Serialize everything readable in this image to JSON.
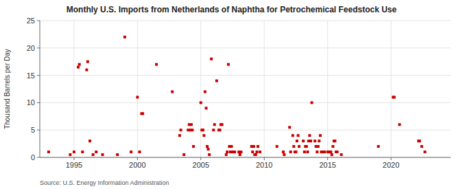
{
  "chart_data": {
    "type": "scatter",
    "title": "Monthly U.S. Imports from Netherlands of Naphtha for Petrochemical Feedstock Use",
    "y_label": "Thousand Barrels per Day",
    "annotations": [
      "Source: U.S. Energy Information Administration"
    ],
    "color": "#cc0000",
    "marker": "square",
    "grid": true,
    "xlim": [
      1992.3,
      2024.7
    ],
    "xticks": [
      1995,
      2000,
      2005,
      2010,
      2015,
      2020
    ],
    "ylim": [
      0,
      25
    ],
    "yticks": [
      0,
      5,
      10,
      15,
      20,
      25
    ],
    "x": [
      1993.0,
      1994.7,
      1995.0,
      1995.33,
      1995.42,
      1995.67,
      1996.0,
      1996.08,
      1996.25,
      1996.5,
      1996.75,
      1997.25,
      1998.42,
      1999.0,
      1999.5,
      2000.0,
      2000.17,
      2000.33,
      2000.42,
      2001.5,
      2002.75,
      2003.33,
      2003.42,
      2003.67,
      2004.0,
      2004.08,
      2004.17,
      2004.25,
      2004.33,
      2004.42,
      2005.0,
      2005.08,
      2005.17,
      2005.25,
      2005.33,
      2005.42,
      2005.5,
      2005.58,
      2005.67,
      2005.83,
      2006.0,
      2006.08,
      2006.25,
      2006.42,
      2006.5,
      2006.58,
      2006.67,
      2007.0,
      2007.08,
      2007.17,
      2007.25,
      2007.33,
      2007.42,
      2007.5,
      2007.58,
      2007.67,
      2008.0,
      2008.08,
      2008.17,
      2009.0,
      2009.08,
      2009.17,
      2009.25,
      2009.33,
      2009.42,
      2009.5,
      2009.67,
      2011.0,
      2011.5,
      2011.58,
      2012.0,
      2012.08,
      2012.25,
      2012.33,
      2012.42,
      2012.5,
      2012.58,
      2012.67,
      2012.75,
      2013.08,
      2013.17,
      2013.25,
      2013.33,
      2013.42,
      2013.5,
      2013.58,
      2013.67,
      2013.75,
      2014.0,
      2014.08,
      2014.17,
      2014.25,
      2014.33,
      2014.42,
      2014.5,
      2014.58,
      2014.67,
      2014.75,
      2015.0,
      2015.08,
      2015.17,
      2015.25,
      2015.33,
      2015.42,
      2015.5,
      2015.58,
      2015.67,
      2015.75,
      2016.08,
      2019.0,
      2020.17,
      2020.25,
      2020.67,
      2022.17,
      2022.25,
      2022.42,
      2022.67
    ],
    "values": [
      1.0,
      0.5,
      1.0,
      16.5,
      17.0,
      1.0,
      16.0,
      17.5,
      3.0,
      0.5,
      1.0,
      0.5,
      0.5,
      22.0,
      1.0,
      11.0,
      1.0,
      8.0,
      8.0,
      17.0,
      12.0,
      4.0,
      5.0,
      0.5,
      5.0,
      6.0,
      5.0,
      6.0,
      5.0,
      2.0,
      10.0,
      5.0,
      5.0,
      4.0,
      12.0,
      9.0,
      2.0,
      1.5,
      0.5,
      18.0,
      5.0,
      6.0,
      14.0,
      5.0,
      5.0,
      6.0,
      6.0,
      0.5,
      1.0,
      17.0,
      2.0,
      1.0,
      2.0,
      1.0,
      1.0,
      1.0,
      1.0,
      0.5,
      1.0,
      2.0,
      1.0,
      2.0,
      0.5,
      0.5,
      1.0,
      2.0,
      1.0,
      2.0,
      1.0,
      0.5,
      5.5,
      1.0,
      4.0,
      2.0,
      1.0,
      1.0,
      3.0,
      4.0,
      2.0,
      3.0,
      1.0,
      2.0,
      2.0,
      1.0,
      3.0,
      4.0,
      3.0,
      10.0,
      3.0,
      2.0,
      1.0,
      2.0,
      3.0,
      4.0,
      1.0,
      1.0,
      1.0,
      1.0,
      1.0,
      1.0,
      1.0,
      1.0,
      0.5,
      2.0,
      3.0,
      3.0,
      1.0,
      1.0,
      0.5,
      2.0,
      11.0,
      11.0,
      6.0,
      3.0,
      3.0,
      2.0,
      1.0
    ]
  }
}
